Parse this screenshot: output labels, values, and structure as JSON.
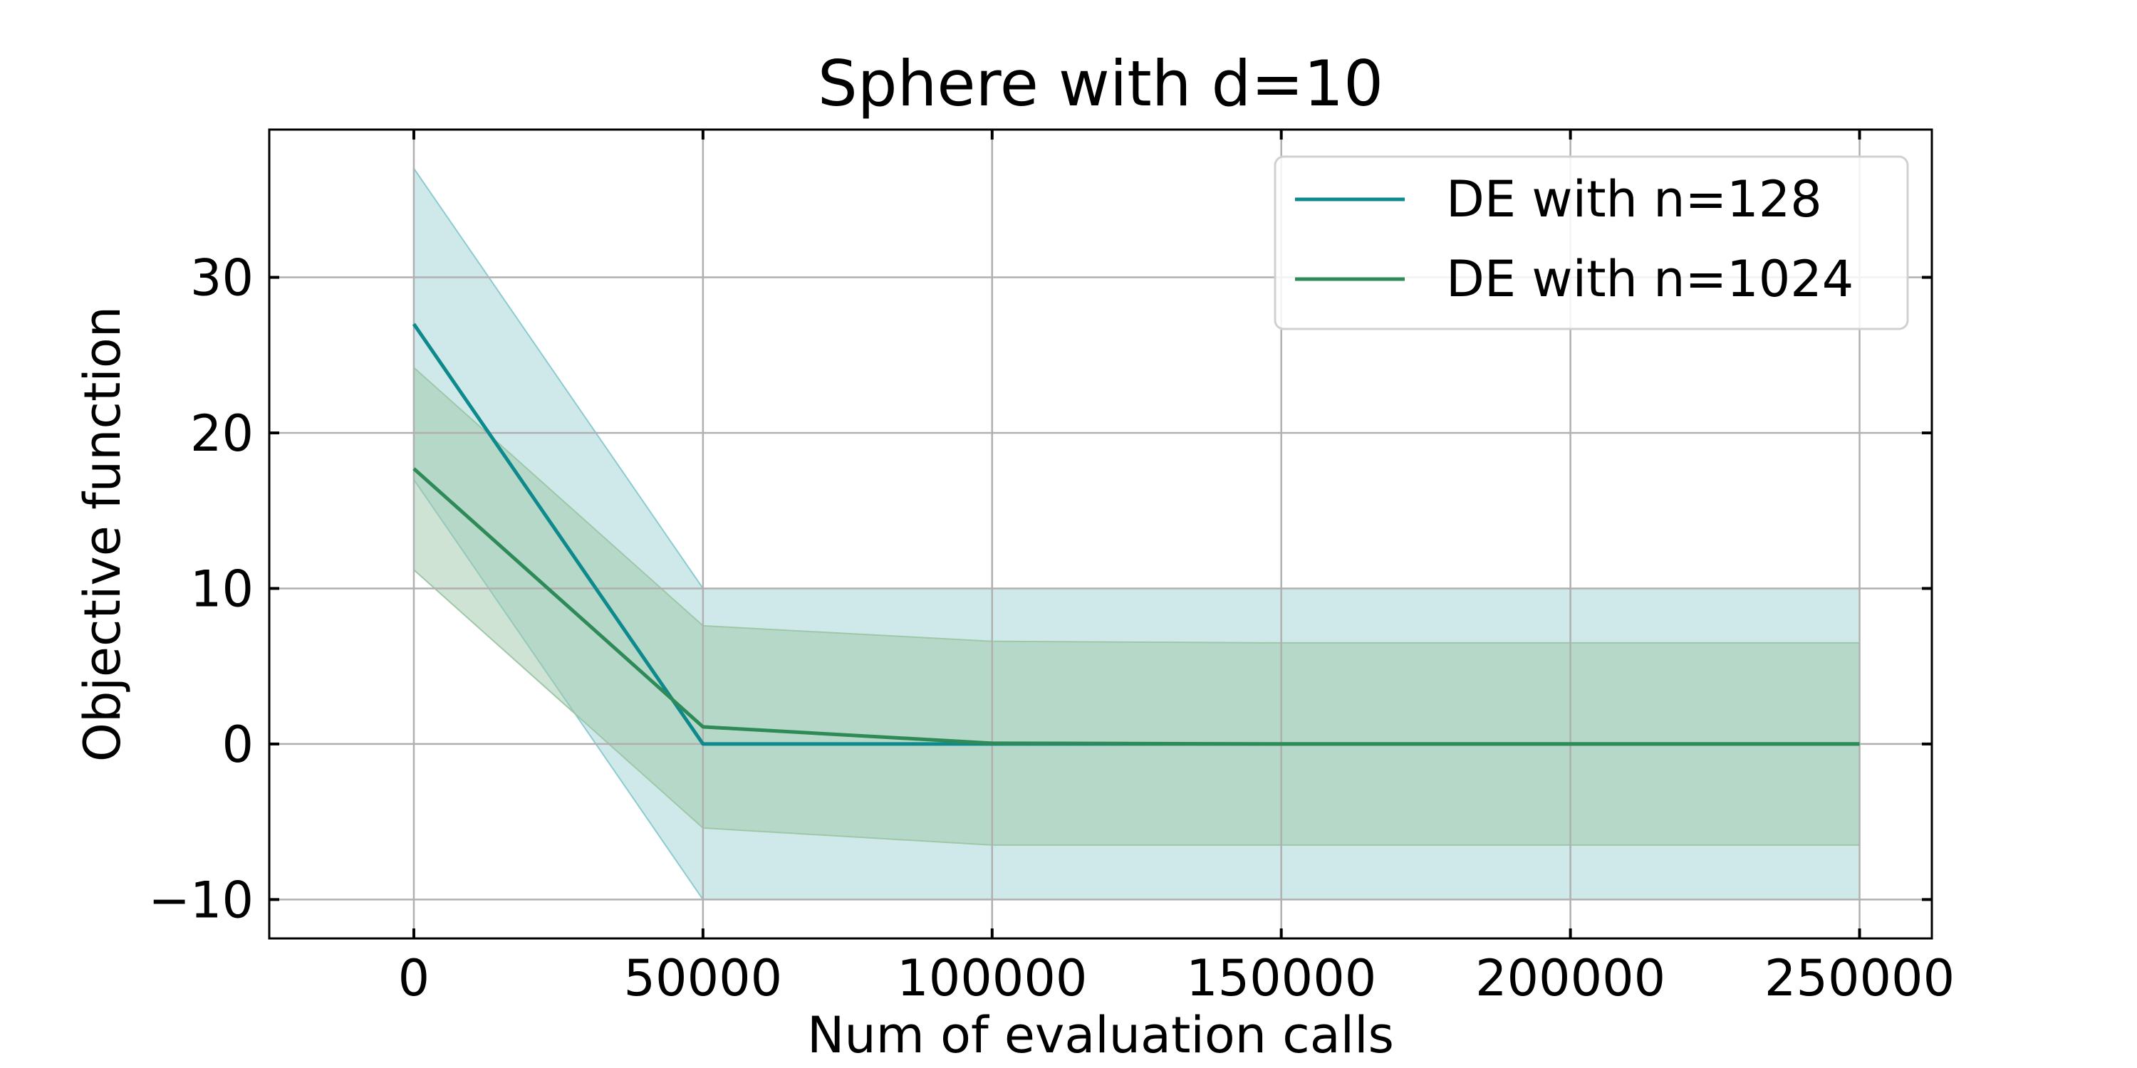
{
  "chart_data": {
    "type": "line",
    "title": "Sphere with d=10",
    "xlabel": "Num of evaluation calls",
    "ylabel": "Objective function",
    "xlim": [
      -25000,
      262500
    ],
    "ylim": [
      -12.5,
      39.5
    ],
    "x_ticks": [
      0,
      50000,
      100000,
      150000,
      200000,
      250000
    ],
    "x_tick_labels": [
      "0",
      "50000",
      "100000",
      "150000",
      "200000",
      "250000"
    ],
    "y_ticks": [
      -10,
      0,
      10,
      20,
      30
    ],
    "y_tick_labels": [
      "−10",
      "0",
      "10",
      "20",
      "30"
    ],
    "grid": true,
    "legend_position": "top-right",
    "x": [
      0,
      50000,
      100000,
      150000,
      200000,
      250000
    ],
    "series": [
      {
        "name": "DE with n=128",
        "color": "#0e8a8c",
        "band_color": "#8ccbd0",
        "values": [
          27.0,
          0.0,
          0.0,
          0.0,
          0.0,
          0.0
        ],
        "band_upper": [
          37.0,
          10.0,
          10.0,
          10.0,
          10.0,
          10.0
        ],
        "band_lower": [
          17.0,
          -10.0,
          -10.0,
          -10.0,
          -10.0,
          -10.0
        ]
      },
      {
        "name": "DE with n=1024",
        "color": "#2e8b57",
        "band_color": "#9ec8a8",
        "values": [
          17.7,
          1.1,
          0.05,
          0.0,
          0.0,
          0.0
        ],
        "band_upper": [
          24.2,
          7.6,
          6.6,
          6.5,
          6.5,
          6.5
        ],
        "band_lower": [
          11.2,
          -5.4,
          -6.5,
          -6.5,
          -6.5,
          -6.5
        ]
      }
    ]
  }
}
